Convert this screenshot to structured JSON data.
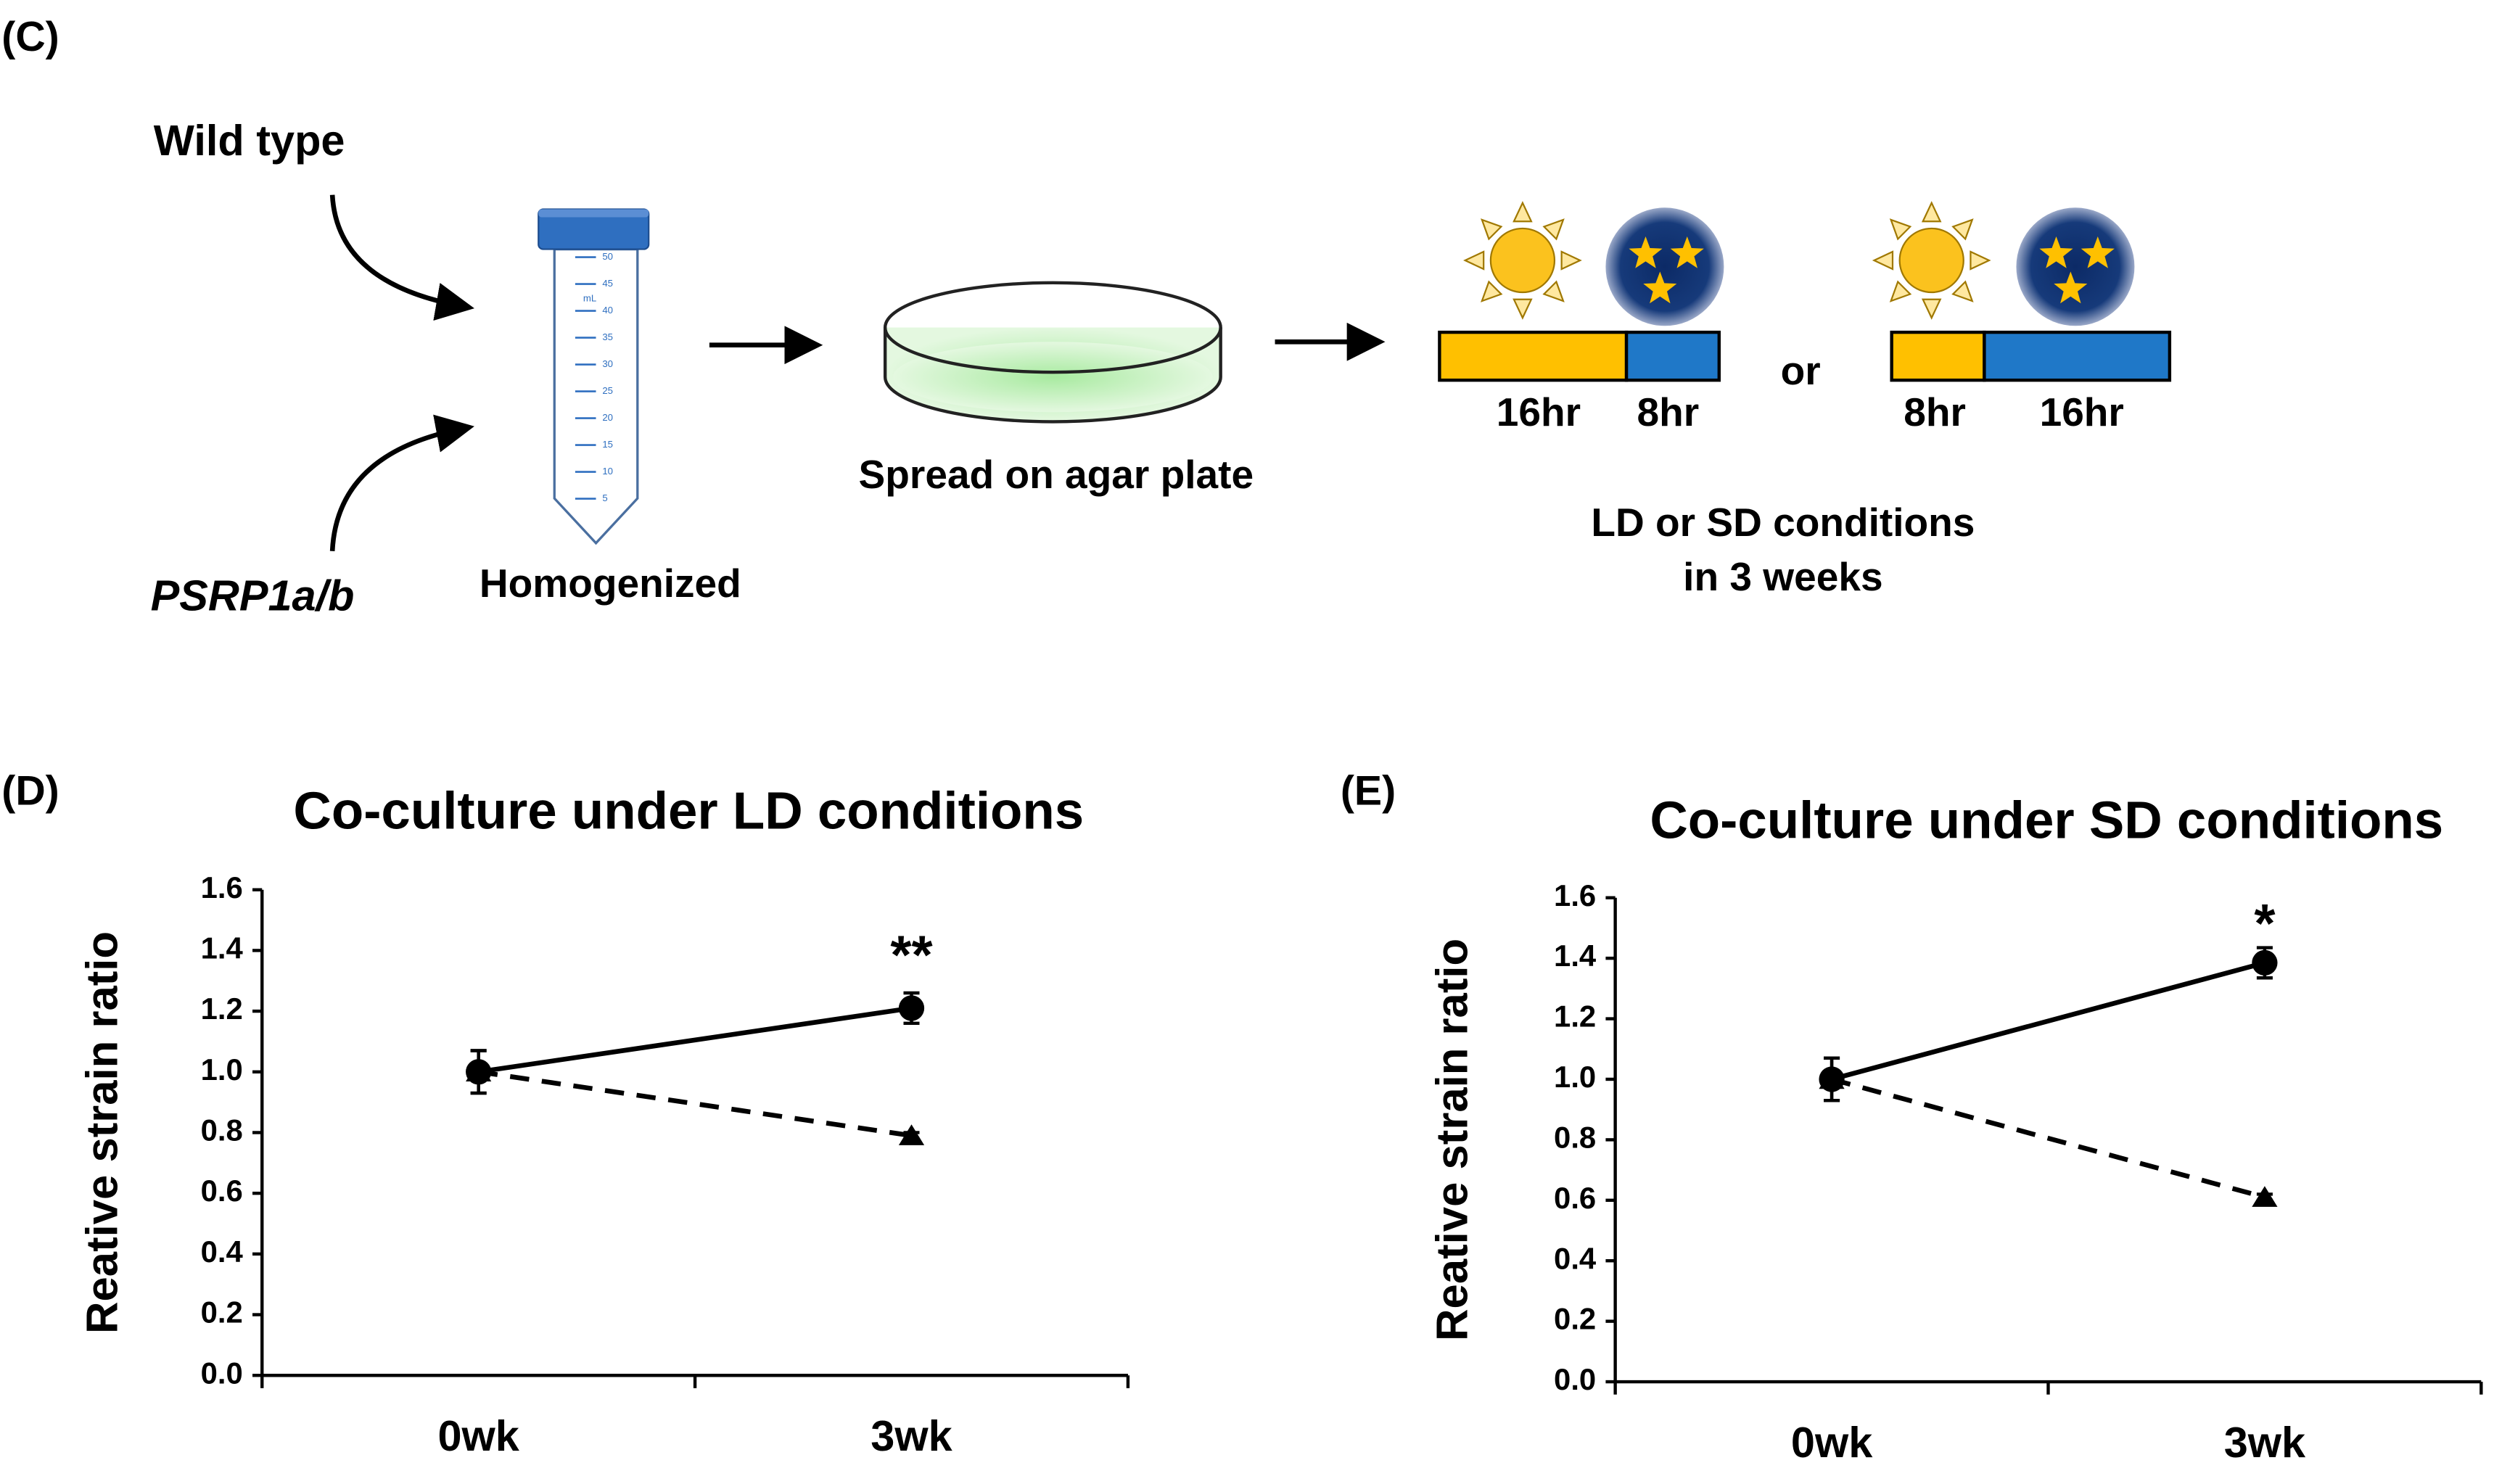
{
  "diagram": {
    "panel_label": "(C)",
    "inputs": [
      "Wild type",
      "PSRP1a/b"
    ],
    "steps": [
      "Homogenized",
      "Spread on agar plate"
    ],
    "tube_scale": [
      "50",
      "45",
      "40",
      "35",
      "30",
      "25",
      "20",
      "15",
      "10",
      "5"
    ],
    "tube_unit": "mL",
    "ld_bar": [
      "16hr",
      "8hr"
    ],
    "or": "or",
    "sd_bar": [
      "8hr",
      "16hr"
    ],
    "condition": [
      "LD or SD conditions",
      "in 3 weeks"
    ]
  },
  "chart_data": [
    {
      "type": "line",
      "panel_label": "(D)",
      "title": "Co-culture under LD conditions",
      "y_label": "Reative strain ratio",
      "categories": [
        "0wk",
        "3wk"
      ],
      "ylim": [
        0,
        1.6
      ],
      "yticks": [
        {
          "value": 0,
          "label": "0.0"
        },
        0.2,
        0.4,
        0.6,
        0.8,
        {
          "value": 1,
          "label": "1.0"
        },
        1.2,
        1.4,
        1.6
      ],
      "series": [
        {
          "color": "#000000",
          "marker": "circle",
          "dashed": false,
          "values": [
            1.0,
            1.21
          ],
          "errors": [
            0.07,
            0.05
          ]
        },
        {
          "color": "#000000",
          "marker": "triangle",
          "dashed": true,
          "values": [
            1.0,
            0.79
          ],
          "errors": [
            0.07,
            0.01
          ]
        }
      ],
      "annotations": [
        {
          "text": "**",
          "category": 1,
          "y": 1.37
        }
      ]
    },
    {
      "type": "line",
      "panel_label": "(E)",
      "title": "Co-culture under SD conditions",
      "y_label": "Reative strain ratio",
      "categories": [
        "0wk",
        "3wk"
      ],
      "ylim": [
        0,
        1.6
      ],
      "yticks": [
        {
          "value": 0,
          "label": "0.0"
        },
        0.2,
        0.4,
        0.6,
        0.8,
        {
          "value": 1,
          "label": "1.0"
        },
        1.2,
        1.4,
        1.6
      ],
      "series": [
        {
          "color": "#000000",
          "marker": "circle",
          "dashed": false,
          "values": [
            1.0,
            1.385
          ],
          "errors": [
            0.07,
            0.05
          ]
        },
        {
          "color": "#000000",
          "marker": "triangle",
          "dashed": true,
          "values": [
            1.0,
            0.61
          ],
          "errors": [
            0.07,
            0.01
          ]
        }
      ],
      "annotations": [
        {
          "text": "*",
          "category": 1,
          "y": 1.5
        }
      ]
    }
  ]
}
